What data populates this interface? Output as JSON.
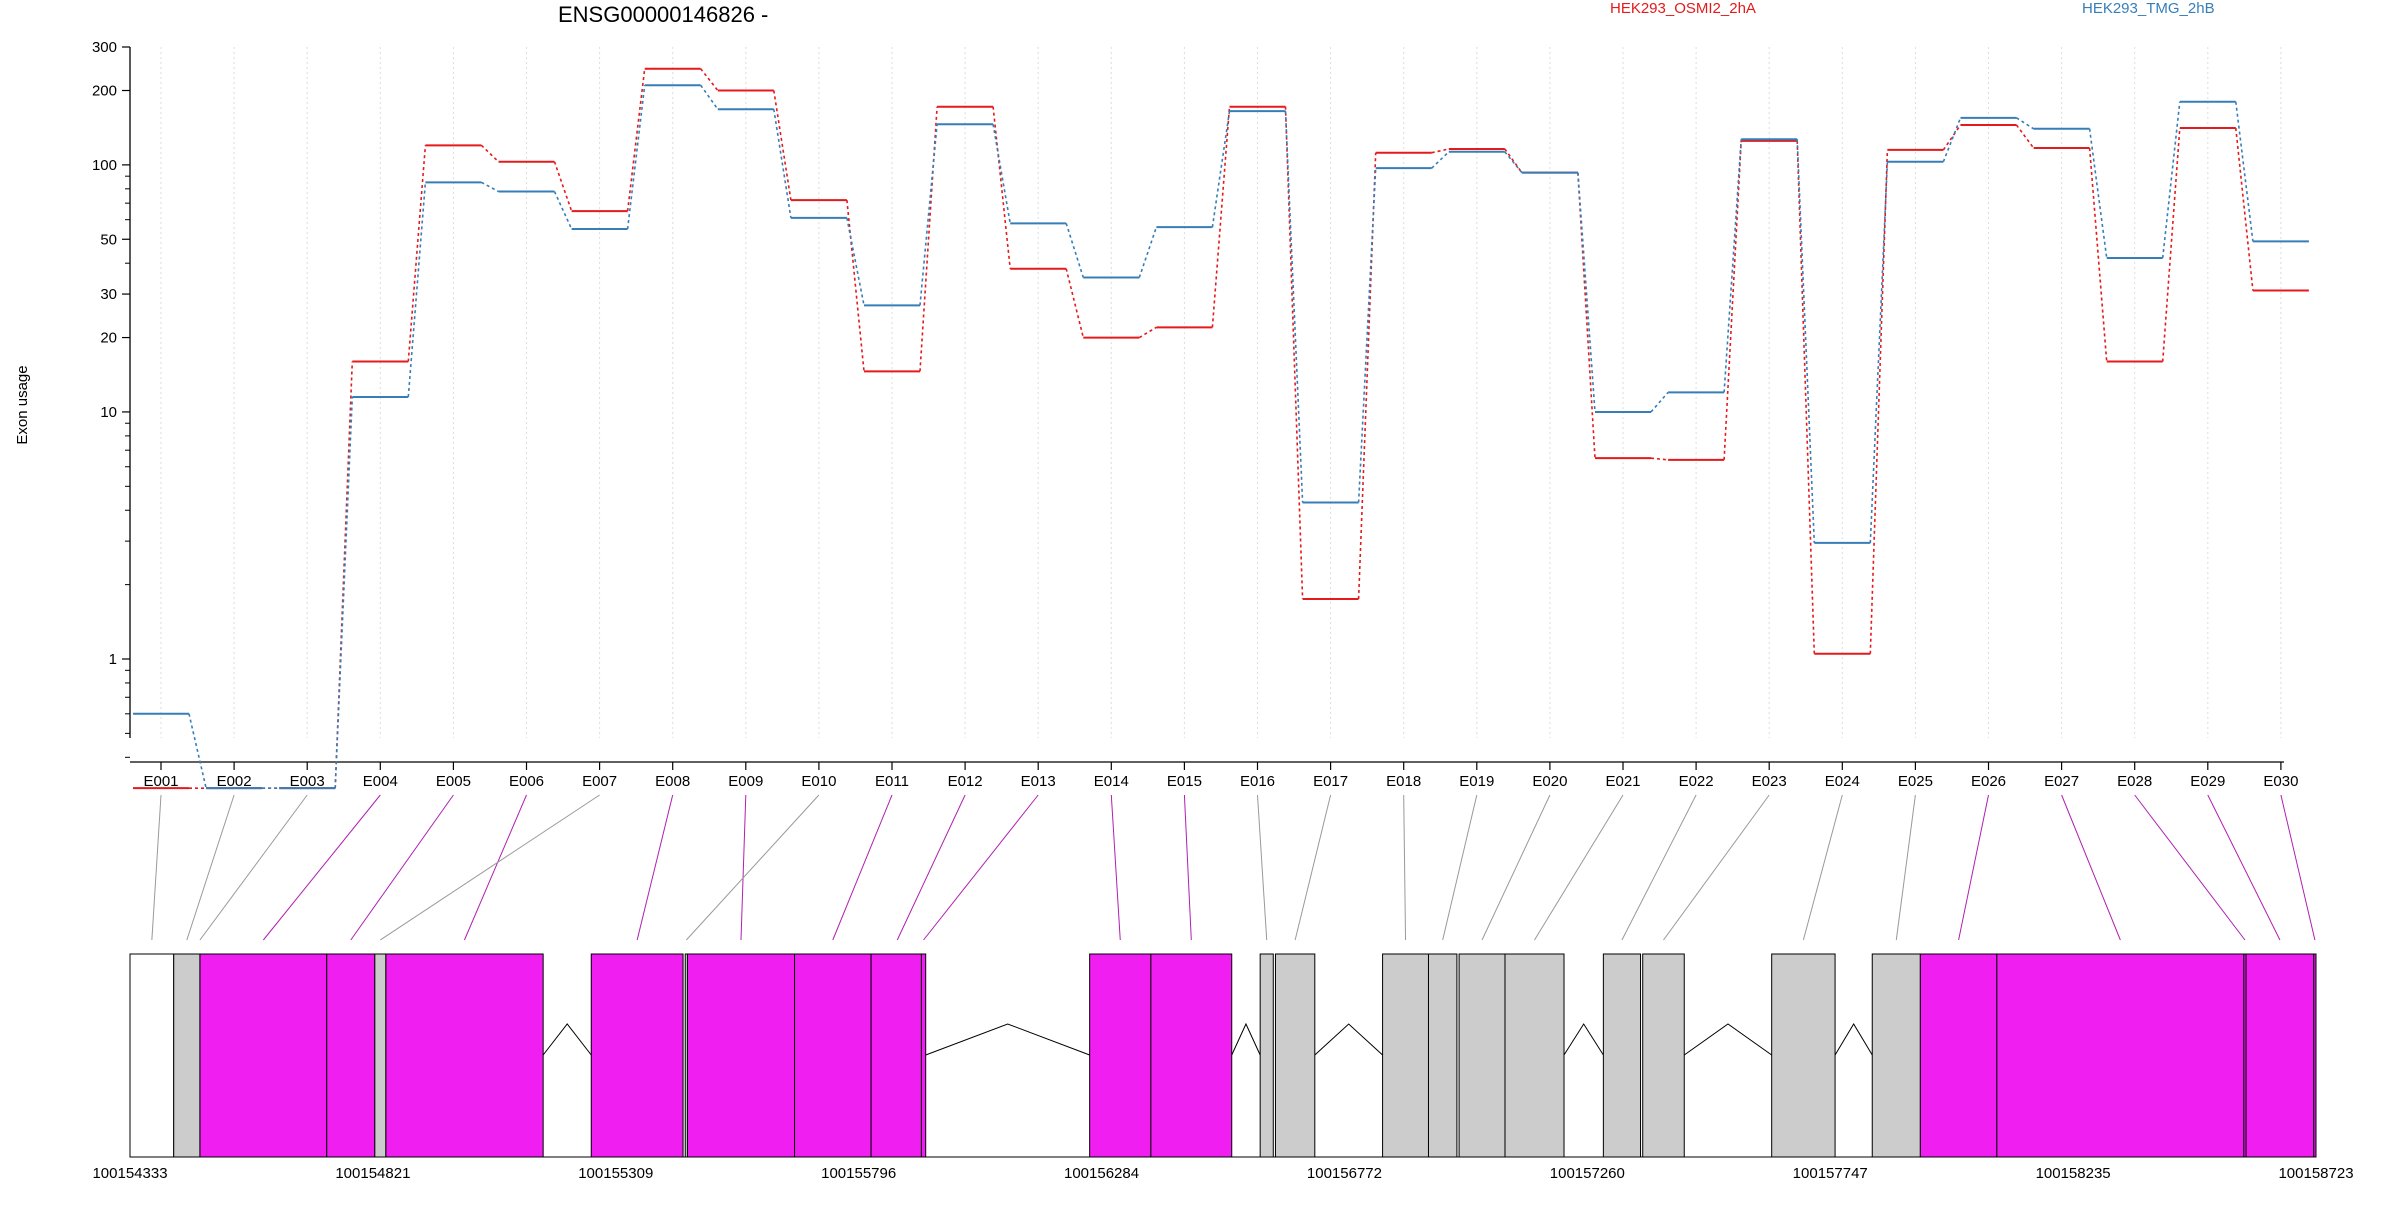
{
  "chart_data": {
    "type": "line",
    "title": "ENSG00000146826 -",
    "ylabel": "Exon usage",
    "xlabel": "",
    "y_scale": "log",
    "ylim": [
      0.3,
      300
    ],
    "y_ticks": [
      1,
      10,
      20,
      30,
      50,
      100,
      200,
      300
    ],
    "grid": "vertical dotted lines at each exon",
    "legend_position": "top-right",
    "categories": [
      "E001",
      "E002",
      "E003",
      "E004",
      "E005",
      "E006",
      "E007",
      "E008",
      "E009",
      "E010",
      "E011",
      "E012",
      "E013",
      "E014",
      "E015",
      "E016",
      "E017",
      "E018",
      "E019",
      "E020",
      "E021",
      "E022",
      "E023",
      "E024",
      "E025",
      "E026",
      "E027",
      "E028",
      "E029",
      "E030"
    ],
    "series": [
      {
        "name": "HEK293_OSMI2_2hA",
        "color": "#e41a1c",
        "values": [
          0.3,
          0.3,
          0.3,
          16,
          120,
          103,
          65,
          245,
          200,
          72,
          14.6,
          172,
          38,
          20,
          22,
          172,
          1.75,
          112,
          116,
          93,
          6.5,
          6.4,
          125,
          1.05,
          115,
          145,
          117,
          16,
          141,
          31
        ]
      },
      {
        "name": "HEK293_TMG_2hB",
        "color": "#377eb8",
        "values": [
          0.6,
          0.3,
          0.3,
          11.5,
          85,
          78,
          55,
          210,
          168,
          61,
          27,
          146,
          58,
          35,
          56,
          165,
          4.3,
          97,
          113,
          93,
          10,
          12,
          127,
          2.95,
          103,
          155,
          140,
          42,
          180,
          49
        ]
      }
    ],
    "gene_model": {
      "coordinate_labels": [
        "100154333",
        "100154821",
        "100155309",
        "100155796",
        "100156284",
        "100156772",
        "100157260",
        "100157747",
        "100158235",
        "100158723"
      ],
      "exon_color_default": "#cccccc",
      "exon_color_highlight": "#f01ef0",
      "highlighted_exons": [
        "E004",
        "E005",
        "E006",
        "E008",
        "E009",
        "E011",
        "E012",
        "E013",
        "E014",
        "E015",
        "E026",
        "E027",
        "E028",
        "E029",
        "E030"
      ]
    }
  }
}
